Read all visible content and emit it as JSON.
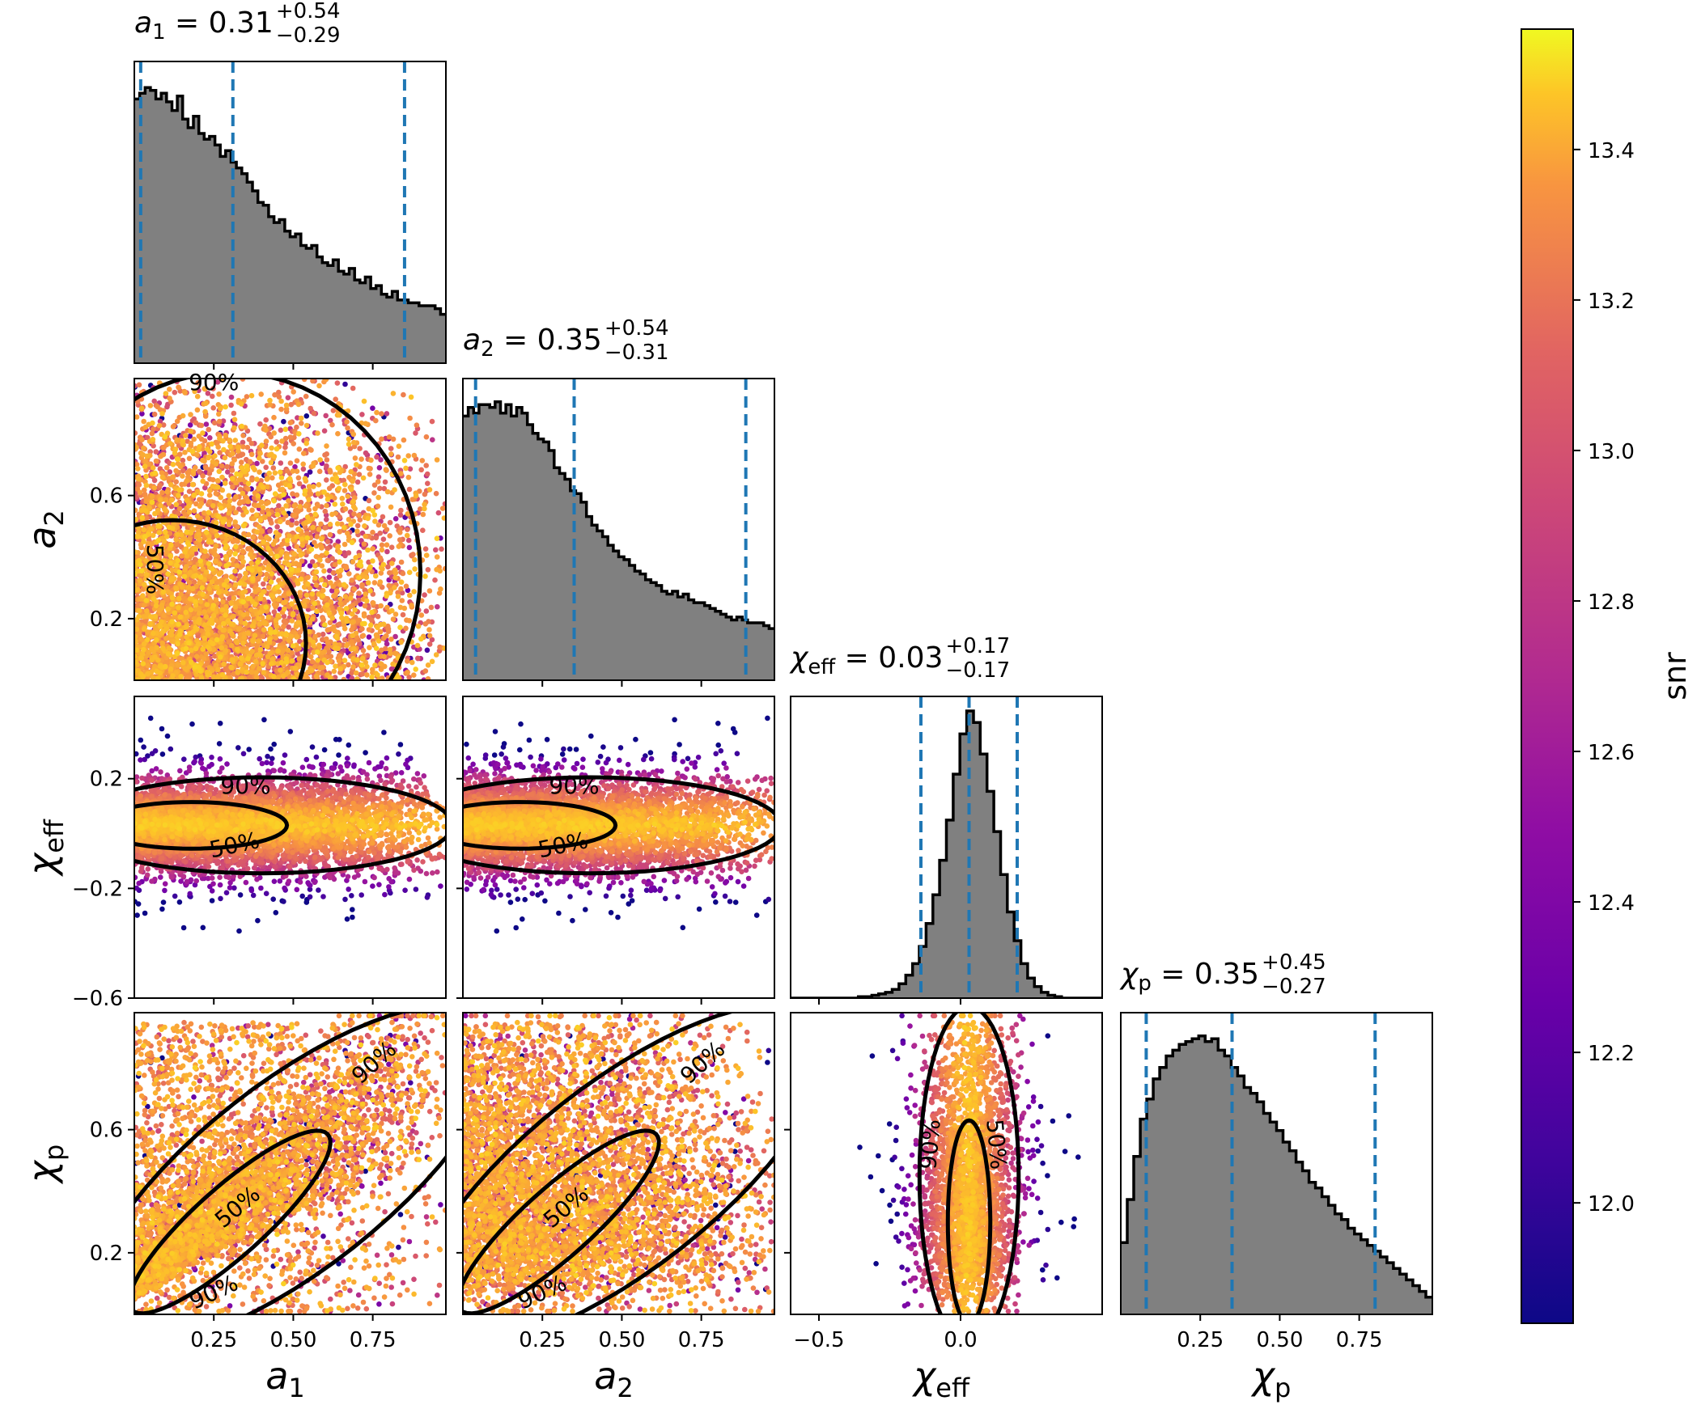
{
  "chart_data": {
    "type": "scatter",
    "parameters": [
      {
        "key": "a1",
        "sym": "a",
        "sub": "1",
        "label_main": "a",
        "label_sub": "1",
        "median": "0.31",
        "plus": "+0.54",
        "minus": "−0.29",
        "lo": 0.02,
        "mid": 0.31,
        "hi": 0.85
      },
      {
        "key": "a2",
        "sym": "a",
        "sub": "2",
        "label_main": "a",
        "label_sub": "2",
        "median": "0.35",
        "plus": "+0.54",
        "minus": "−0.31",
        "lo": 0.04,
        "mid": 0.35,
        "hi": 0.89
      },
      {
        "key": "chi_eff",
        "sym": "χ",
        "sub": "eff",
        "label_main": "χ",
        "label_sub": "eff",
        "median": "0.03",
        "plus": "+0.17",
        "minus": "−0.17",
        "lo": -0.14,
        "mid": 0.03,
        "hi": 0.2
      },
      {
        "key": "chi_p",
        "sym": "χ",
        "sub": "p",
        "label_main": "χ",
        "label_sub": "p",
        "median": "0.35",
        "plus": "+0.45",
        "minus": "−0.27",
        "lo": 0.08,
        "mid": 0.35,
        "hi": 0.8
      }
    ],
    "ranges": {
      "a1": [
        0.0,
        0.98
      ],
      "a2": [
        0.0,
        0.98
      ],
      "chi_eff": [
        -0.6,
        0.5
      ],
      "chi_p": [
        0.0,
        0.98
      ]
    },
    "ticks": {
      "a1": {
        "values": [
          0.25,
          0.5,
          0.75
        ],
        "labels": [
          "0.25",
          "0.50",
          "0.75"
        ]
      },
      "a2": {
        "values": [
          0.25,
          0.5,
          0.75
        ],
        "labels": [
          "0.25",
          "0.50",
          "0.75"
        ]
      },
      "a2_y": {
        "values": [
          0.2,
          0.6
        ],
        "labels": [
          "0.2",
          "0.6"
        ]
      },
      "chi_eff_x": {
        "values": [
          -0.5,
          0.0
        ],
        "labels": [
          "−0.5",
          "0.0"
        ]
      },
      "chi_eff_y": {
        "values": [
          -0.6,
          -0.2,
          0.2
        ],
        "labels": [
          "−0.6",
          "−0.2",
          "0.2"
        ]
      },
      "chi_p_x": {
        "values": [
          0.25,
          0.5,
          0.75
        ],
        "labels": [
          "0.25",
          "0.50",
          "0.75"
        ]
      },
      "chi_p_y": {
        "values": [
          0.2,
          0.6
        ],
        "labels": [
          "0.2",
          "0.6"
        ]
      }
    },
    "histograms": {
      "a1": [
        0.92,
        0.94,
        0.96,
        0.95,
        0.92,
        0.94,
        0.91,
        0.88,
        0.93,
        0.85,
        0.82,
        0.86,
        0.8,
        0.78,
        0.79,
        0.76,
        0.72,
        0.74,
        0.7,
        0.68,
        0.66,
        0.63,
        0.6,
        0.56,
        0.55,
        0.51,
        0.49,
        0.5,
        0.46,
        0.44,
        0.45,
        0.41,
        0.4,
        0.41,
        0.37,
        0.35,
        0.34,
        0.36,
        0.32,
        0.31,
        0.33,
        0.29,
        0.28,
        0.3,
        0.26,
        0.27,
        0.24,
        0.23,
        0.25,
        0.22,
        0.22,
        0.21,
        0.21,
        0.2,
        0.2,
        0.2,
        0.19,
        0.17
      ],
      "a2": [
        0.92,
        0.95,
        0.93,
        0.96,
        0.96,
        0.95,
        0.97,
        0.93,
        0.96,
        0.92,
        0.95,
        0.93,
        0.89,
        0.86,
        0.84,
        0.83,
        0.8,
        0.74,
        0.72,
        0.7,
        0.66,
        0.65,
        0.62,
        0.57,
        0.54,
        0.52,
        0.5,
        0.47,
        0.45,
        0.43,
        0.42,
        0.4,
        0.38,
        0.37,
        0.35,
        0.34,
        0.33,
        0.31,
        0.3,
        0.31,
        0.29,
        0.3,
        0.28,
        0.27,
        0.27,
        0.26,
        0.25,
        0.24,
        0.23,
        0.22,
        0.21,
        0.22,
        0.21,
        0.2,
        0.2,
        0.2,
        0.19,
        0.18
      ],
      "chi_eff": [
        0.0,
        0.0,
        0.0,
        0.0,
        0.0,
        0.0,
        0.0,
        0.0,
        0.0,
        0.0,
        0.005,
        0.005,
        0.01,
        0.015,
        0.02,
        0.03,
        0.05,
        0.08,
        0.12,
        0.18,
        0.26,
        0.36,
        0.48,
        0.62,
        0.78,
        0.92,
        1.0,
        0.96,
        0.85,
        0.72,
        0.58,
        0.43,
        0.3,
        0.2,
        0.12,
        0.07,
        0.04,
        0.02,
        0.01,
        0.005,
        0.0,
        0.0,
        0.0,
        0.0,
        0.0,
        0.0
      ],
      "chi_p": [
        0.25,
        0.4,
        0.55,
        0.68,
        0.75,
        0.82,
        0.86,
        0.9,
        0.92,
        0.94,
        0.95,
        0.96,
        0.97,
        0.95,
        0.96,
        0.92,
        0.9,
        0.86,
        0.83,
        0.79,
        0.77,
        0.74,
        0.7,
        0.67,
        0.64,
        0.6,
        0.57,
        0.53,
        0.5,
        0.46,
        0.44,
        0.41,
        0.38,
        0.35,
        0.33,
        0.3,
        0.28,
        0.26,
        0.24,
        0.22,
        0.2,
        0.18,
        0.16,
        0.14,
        0.12,
        0.1,
        0.08,
        0.06
      ]
    },
    "contour_levels": [
      "50%",
      "90%"
    ],
    "colorbar": {
      "label": "snr",
      "colormap": "plasma",
      "range": [
        11.84,
        13.56
      ],
      "ticks": [
        12.0,
        12.2,
        12.4,
        12.6,
        12.8,
        13.0,
        13.2,
        13.4
      ],
      "tick_labels": [
        "12.0",
        "12.2",
        "12.4",
        "12.6",
        "12.8",
        "13.0",
        "13.2",
        "13.4"
      ]
    },
    "colors": {
      "hist_fill": "#808080",
      "hist_edge": "#000000",
      "quantile_line": "#1f77b4",
      "contour": "#000000"
    }
  }
}
